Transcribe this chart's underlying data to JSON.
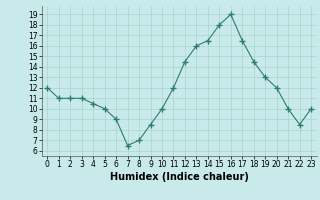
{
  "x": [
    0,
    1,
    2,
    3,
    4,
    5,
    6,
    7,
    8,
    9,
    10,
    11,
    12,
    13,
    14,
    15,
    16,
    17,
    18,
    19,
    20,
    21,
    22,
    23
  ],
  "y": [
    12,
    11,
    11,
    11,
    10.5,
    10,
    9,
    6.5,
    7,
    8.5,
    10,
    12,
    14.5,
    16,
    16.5,
    18,
    19,
    16.5,
    14.5,
    13,
    12,
    10,
    8.5,
    10
  ],
  "line_color": "#2e7d6e",
  "marker": "+",
  "marker_size": 4,
  "bg_color": "#c8eaea",
  "grid_color": "#aad4cc",
  "xlabel": "Humidex (Indice chaleur)",
  "xlim": [
    -0.5,
    23.5
  ],
  "ylim": [
    5.5,
    19.8
  ],
  "yticks": [
    6,
    7,
    8,
    9,
    10,
    11,
    12,
    13,
    14,
    15,
    16,
    17,
    18,
    19
  ],
  "xticks": [
    0,
    1,
    2,
    3,
    4,
    5,
    6,
    7,
    8,
    9,
    10,
    11,
    12,
    13,
    14,
    15,
    16,
    17,
    18,
    19,
    20,
    21,
    22,
    23
  ],
  "tick_fontsize": 5.5,
  "xlabel_fontsize": 7,
  "xlabel_fontweight": "bold"
}
